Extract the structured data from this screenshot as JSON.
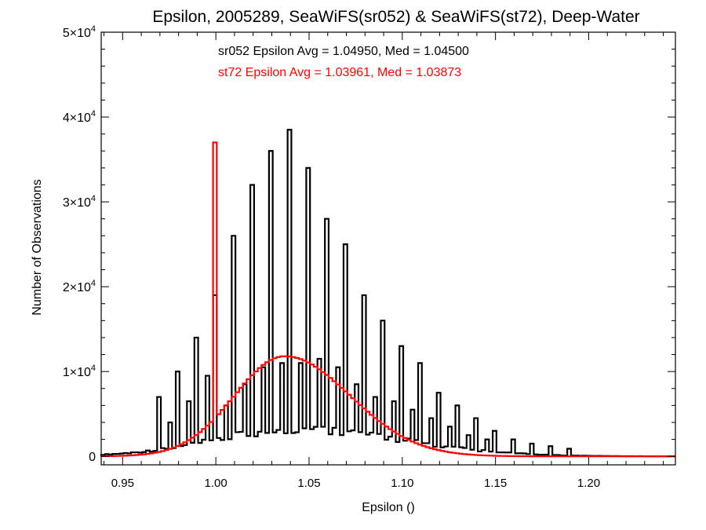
{
  "chart_data": {
    "type": "bar",
    "title": "Epsilon, 2005289, SeaWiFS(sr052) & SeaWiFS(st72), Deep-Water",
    "xlabel": "Epsilon ()",
    "ylabel": "Number of Observations",
    "xlim": [
      0.9385,
      1.2465
    ],
    "ylim": [
      -1000,
      50000
    ],
    "x_ticks": [
      {
        "value": 0.95,
        "label": "0.95"
      },
      {
        "value": 1.0,
        "label": "1.00"
      },
      {
        "value": 1.05,
        "label": "1.05"
      },
      {
        "value": 1.1,
        "label": "1.10"
      },
      {
        "value": 1.15,
        "label": "1.15"
      },
      {
        "value": 1.2,
        "label": "1.20"
      }
    ],
    "y_ticks": [
      {
        "value": 0,
        "mantissa": "0",
        "exponent": ""
      },
      {
        "value": 10000,
        "mantissa": "1×10",
        "exponent": "4"
      },
      {
        "value": 20000,
        "mantissa": "2×10",
        "exponent": "4"
      },
      {
        "value": 30000,
        "mantissa": "3×10",
        "exponent": "4"
      },
      {
        "value": 40000,
        "mantissa": "4×10",
        "exponent": "4"
      },
      {
        "value": 50000,
        "mantissa": "5×10",
        "exponent": "4"
      }
    ],
    "grid": false,
    "bin_width": 0.002,
    "annotations": [
      {
        "text": "sr052 Epsilon Avg = 1.04950, Med = 1.04500",
        "color": "#000000"
      },
      {
        "text": "st72 Epsilon Avg = 1.03961, Med = 1.03873",
        "color": "#ff0000"
      }
    ],
    "series": [
      {
        "name": "sr052",
        "color": "#000000",
        "bin_start": 0.9385,
        "spikes": [
          {
            "x": 0.97,
            "y": 7000
          },
          {
            "x": 0.975,
            "y": 4000
          },
          {
            "x": 0.98,
            "y": 10000
          },
          {
            "x": 0.985,
            "y": 6500
          },
          {
            "x": 0.99,
            "y": 14000
          },
          {
            "x": 0.995,
            "y": 9500
          },
          {
            "x": 1.0,
            "y": 19000
          },
          {
            "x": 1.005,
            "y": 6000
          },
          {
            "x": 1.01,
            "y": 26000
          },
          {
            "x": 1.015,
            "y": 8500
          },
          {
            "x": 1.02,
            "y": 32000
          },
          {
            "x": 1.025,
            "y": 10500
          },
          {
            "x": 1.03,
            "y": 36000
          },
          {
            "x": 1.035,
            "y": 11000
          },
          {
            "x": 1.04,
            "y": 38500
          },
          {
            "x": 1.045,
            "y": 11000
          },
          {
            "x": 1.05,
            "y": 34000
          },
          {
            "x": 1.055,
            "y": 11500
          },
          {
            "x": 1.06,
            "y": 28000
          },
          {
            "x": 1.065,
            "y": 10500
          },
          {
            "x": 1.07,
            "y": 25000
          },
          {
            "x": 1.075,
            "y": 8500
          },
          {
            "x": 1.08,
            "y": 19000
          },
          {
            "x": 1.085,
            "y": 7000
          },
          {
            "x": 1.09,
            "y": 16000
          },
          {
            "x": 1.095,
            "y": 6500
          },
          {
            "x": 1.1,
            "y": 13000
          },
          {
            "x": 1.105,
            "y": 5500
          },
          {
            "x": 1.11,
            "y": 11000
          },
          {
            "x": 1.115,
            "y": 4500
          },
          {
            "x": 1.12,
            "y": 7500
          },
          {
            "x": 1.125,
            "y": 3500
          },
          {
            "x": 1.13,
            "y": 6000
          },
          {
            "x": 1.135,
            "y": 2500
          },
          {
            "x": 1.14,
            "y": 4500
          },
          {
            "x": 1.145,
            "y": 2000
          },
          {
            "x": 1.15,
            "y": 3000
          },
          {
            "x": 1.16,
            "y": 2000
          },
          {
            "x": 1.17,
            "y": 1500
          },
          {
            "x": 1.18,
            "y": 1200
          },
          {
            "x": 1.19,
            "y": 900
          }
        ],
        "baseline": {
          "peak_x": 1.045,
          "peak_y": 3200,
          "sigma_left": 0.045,
          "sigma_right": 0.055
        }
      },
      {
        "name": "st72",
        "color": "#ff0000",
        "bin_start": 0.9385,
        "spikes": [
          {
            "x": 1.0,
            "y": 37000
          }
        ],
        "curve": {
          "peak_x": 1.037,
          "peak_y": 11800,
          "sigma_left": 0.027,
          "sigma_right": 0.035
        }
      }
    ]
  }
}
